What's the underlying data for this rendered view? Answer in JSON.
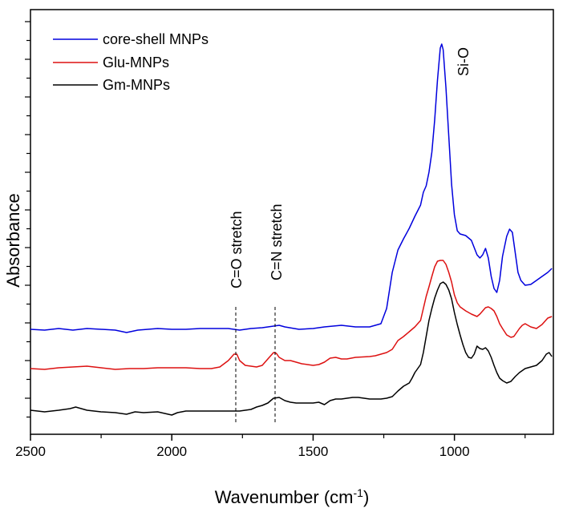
{
  "chart_data": {
    "type": "line",
    "xlabel": "Wavenumber (cm",
    "xlabel_sup": "-1",
    "xlabel_close": ")",
    "ylabel": "Absorbance",
    "xlim": [
      2500,
      650
    ],
    "x_reversed": true,
    "x_ticks": [
      "2500",
      "2000",
      "1500",
      "1000"
    ],
    "y_ticks_labeled": false,
    "legend_position": "top-left",
    "series": [
      {
        "name": "core-shell MNPs",
        "color": "#0000dd",
        "points": [
          [
            2500,
            411
          ],
          [
            2450,
            412
          ],
          [
            2400,
            410
          ],
          [
            2350,
            412
          ],
          [
            2300,
            410
          ],
          [
            2250,
            411
          ],
          [
            2200,
            412
          ],
          [
            2160,
            415
          ],
          [
            2120,
            412
          ],
          [
            2050,
            410
          ],
          [
            2000,
            411
          ],
          [
            1950,
            411
          ],
          [
            1900,
            410
          ],
          [
            1850,
            410
          ],
          [
            1800,
            410
          ],
          [
            1760,
            412
          ],
          [
            1720,
            410
          ],
          [
            1680,
            409
          ],
          [
            1640,
            407
          ],
          [
            1620,
            406
          ],
          [
            1600,
            408
          ],
          [
            1550,
            411
          ],
          [
            1500,
            410
          ],
          [
            1460,
            408
          ],
          [
            1400,
            406
          ],
          [
            1350,
            408
          ],
          [
            1300,
            408
          ],
          [
            1260,
            404
          ],
          [
            1240,
            385
          ],
          [
            1220,
            340
          ],
          [
            1200,
            312
          ],
          [
            1180,
            298
          ],
          [
            1160,
            285
          ],
          [
            1140,
            270
          ],
          [
            1120,
            256
          ],
          [
            1110,
            240
          ],
          [
            1100,
            232
          ],
          [
            1090,
            215
          ],
          [
            1080,
            190
          ],
          [
            1070,
            150
          ],
          [
            1060,
            100
          ],
          [
            1050,
            60
          ],
          [
            1045,
            55
          ],
          [
            1040,
            62
          ],
          [
            1030,
            110
          ],
          [
            1020,
            170
          ],
          [
            1010,
            230
          ],
          [
            1000,
            268
          ],
          [
            990,
            288
          ],
          [
            980,
            292
          ],
          [
            960,
            294
          ],
          [
            940,
            300
          ],
          [
            920,
            318
          ],
          [
            910,
            322
          ],
          [
            900,
            318
          ],
          [
            890,
            310
          ],
          [
            880,
            322
          ],
          [
            870,
            345
          ],
          [
            860,
            360
          ],
          [
            850,
            365
          ],
          [
            840,
            350
          ],
          [
            830,
            320
          ],
          [
            815,
            295
          ],
          [
            805,
            286
          ],
          [
            795,
            290
          ],
          [
            785,
            315
          ],
          [
            775,
            340
          ],
          [
            765,
            350
          ],
          [
            750,
            356
          ],
          [
            730,
            355
          ],
          [
            710,
            350
          ],
          [
            690,
            345
          ],
          [
            670,
            340
          ],
          [
            655,
            335
          ]
        ]
      },
      {
        "name": "Glu-MNPs",
        "color": "#dd1111",
        "points": [
          [
            2500,
            460
          ],
          [
            2450,
            461
          ],
          [
            2400,
            459
          ],
          [
            2350,
            458
          ],
          [
            2300,
            457
          ],
          [
            2250,
            459
          ],
          [
            2200,
            461
          ],
          [
            2150,
            460
          ],
          [
            2100,
            460
          ],
          [
            2050,
            459
          ],
          [
            2000,
            459
          ],
          [
            1950,
            459
          ],
          [
            1900,
            460
          ],
          [
            1860,
            460
          ],
          [
            1830,
            458
          ],
          [
            1800,
            450
          ],
          [
            1780,
            442
          ],
          [
            1770,
            442
          ],
          [
            1760,
            450
          ],
          [
            1740,
            456
          ],
          [
            1720,
            457
          ],
          [
            1700,
            458
          ],
          [
            1680,
            456
          ],
          [
            1660,
            448
          ],
          [
            1640,
            440
          ],
          [
            1630,
            441
          ],
          [
            1620,
            446
          ],
          [
            1600,
            450
          ],
          [
            1580,
            450
          ],
          [
            1560,
            452
          ],
          [
            1540,
            454
          ],
          [
            1520,
            455
          ],
          [
            1500,
            456
          ],
          [
            1480,
            455
          ],
          [
            1460,
            452
          ],
          [
            1440,
            447
          ],
          [
            1420,
            446
          ],
          [
            1400,
            448
          ],
          [
            1380,
            448
          ],
          [
            1350,
            446
          ],
          [
            1300,
            445
          ],
          [
            1280,
            444
          ],
          [
            1260,
            442
          ],
          [
            1240,
            440
          ],
          [
            1220,
            436
          ],
          [
            1200,
            425
          ],
          [
            1180,
            420
          ],
          [
            1160,
            414
          ],
          [
            1140,
            408
          ],
          [
            1120,
            400
          ],
          [
            1110,
            385
          ],
          [
            1100,
            370
          ],
          [
            1090,
            358
          ],
          [
            1080,
            345
          ],
          [
            1070,
            333
          ],
          [
            1060,
            326
          ],
          [
            1050,
            325
          ],
          [
            1040,
            325
          ],
          [
            1030,
            330
          ],
          [
            1020,
            340
          ],
          [
            1010,
            352
          ],
          [
            1000,
            368
          ],
          [
            990,
            378
          ],
          [
            980,
            383
          ],
          [
            960,
            388
          ],
          [
            940,
            392
          ],
          [
            920,
            395
          ],
          [
            910,
            392
          ],
          [
            900,
            388
          ],
          [
            890,
            384
          ],
          [
            880,
            383
          ],
          [
            870,
            385
          ],
          [
            860,
            388
          ],
          [
            850,
            395
          ],
          [
            840,
            404
          ],
          [
            830,
            410
          ],
          [
            815,
            418
          ],
          [
            800,
            421
          ],
          [
            790,
            420
          ],
          [
            780,
            415
          ],
          [
            770,
            410
          ],
          [
            760,
            406
          ],
          [
            750,
            404
          ],
          [
            730,
            408
          ],
          [
            710,
            410
          ],
          [
            690,
            405
          ],
          [
            670,
            397
          ],
          [
            655,
            395
          ]
        ]
      },
      {
        "name": "Gm-MNPs",
        "color": "#000000",
        "points": [
          [
            2500,
            512
          ],
          [
            2450,
            514
          ],
          [
            2400,
            512
          ],
          [
            2360,
            510
          ],
          [
            2340,
            508
          ],
          [
            2320,
            510
          ],
          [
            2300,
            512
          ],
          [
            2250,
            514
          ],
          [
            2200,
            515
          ],
          [
            2160,
            517
          ],
          [
            2130,
            514
          ],
          [
            2100,
            515
          ],
          [
            2050,
            514
          ],
          [
            2000,
            518
          ],
          [
            1980,
            515
          ],
          [
            1950,
            513
          ],
          [
            1900,
            513
          ],
          [
            1850,
            513
          ],
          [
            1800,
            513
          ],
          [
            1760,
            513
          ],
          [
            1740,
            512
          ],
          [
            1720,
            511
          ],
          [
            1700,
            508
          ],
          [
            1680,
            506
          ],
          [
            1660,
            503
          ],
          [
            1640,
            497
          ],
          [
            1620,
            496
          ],
          [
            1600,
            500
          ],
          [
            1580,
            502
          ],
          [
            1560,
            503
          ],
          [
            1540,
            503
          ],
          [
            1520,
            503
          ],
          [
            1500,
            503
          ],
          [
            1480,
            502
          ],
          [
            1460,
            505
          ],
          [
            1440,
            500
          ],
          [
            1420,
            498
          ],
          [
            1400,
            498
          ],
          [
            1380,
            497
          ],
          [
            1360,
            496
          ],
          [
            1340,
            496
          ],
          [
            1320,
            497
          ],
          [
            1300,
            498
          ],
          [
            1280,
            498
          ],
          [
            1260,
            498
          ],
          [
            1240,
            497
          ],
          [
            1220,
            495
          ],
          [
            1200,
            488
          ],
          [
            1180,
            482
          ],
          [
            1160,
            478
          ],
          [
            1150,
            472
          ],
          [
            1140,
            465
          ],
          [
            1120,
            455
          ],
          [
            1110,
            440
          ],
          [
            1100,
            420
          ],
          [
            1090,
            400
          ],
          [
            1080,
            385
          ],
          [
            1070,
            372
          ],
          [
            1060,
            362
          ],
          [
            1050,
            354
          ],
          [
            1040,
            352
          ],
          [
            1030,
            355
          ],
          [
            1020,
            362
          ],
          [
            1010,
            373
          ],
          [
            1000,
            390
          ],
          [
            990,
            405
          ],
          [
            980,
            418
          ],
          [
            970,
            430
          ],
          [
            960,
            440
          ],
          [
            950,
            446
          ],
          [
            940,
            447
          ],
          [
            930,
            442
          ],
          [
            920,
            432
          ],
          [
            910,
            435
          ],
          [
            900,
            436
          ],
          [
            890,
            434
          ],
          [
            880,
            438
          ],
          [
            870,
            446
          ],
          [
            860,
            456
          ],
          [
            850,
            465
          ],
          [
            840,
            472
          ],
          [
            830,
            475
          ],
          [
            815,
            478
          ],
          [
            800,
            476
          ],
          [
            785,
            470
          ],
          [
            770,
            465
          ],
          [
            750,
            460
          ],
          [
            730,
            458
          ],
          [
            710,
            456
          ],
          [
            690,
            450
          ],
          [
            675,
            442
          ],
          [
            665,
            440
          ],
          [
            655,
            445
          ]
        ]
      }
    ],
    "annotations": [
      {
        "text": "Si-O",
        "x": 1000
      },
      {
        "text": "C=O stretch",
        "x": 1775
      },
      {
        "text": "C=N stretch",
        "x": 1635
      }
    ]
  }
}
